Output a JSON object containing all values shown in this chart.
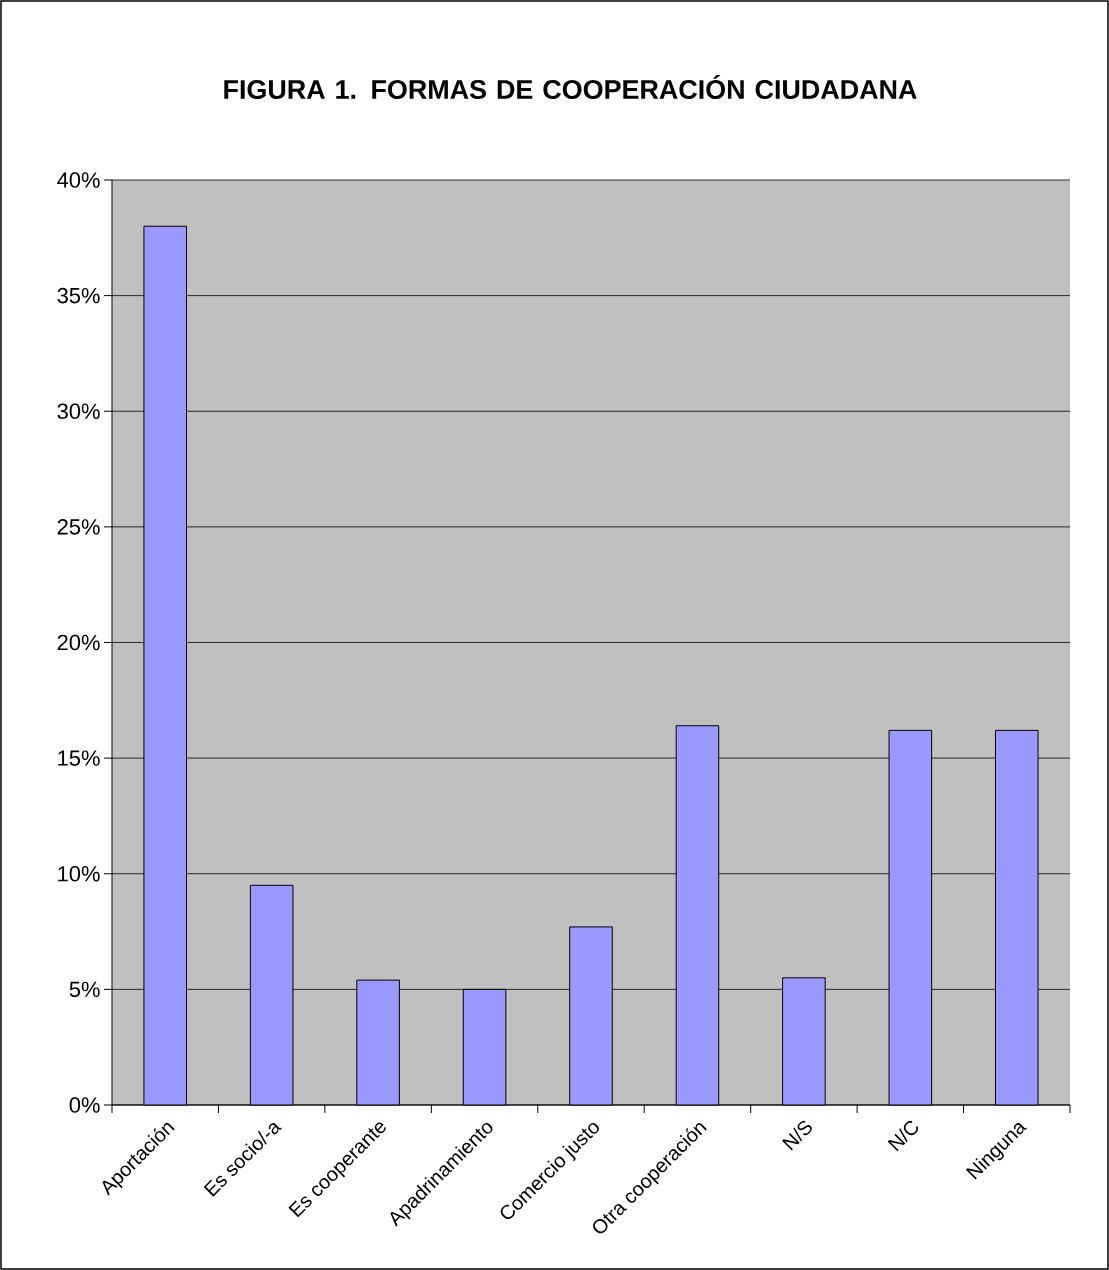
{
  "chart_data": {
    "type": "bar",
    "title": "FIGURA 1. FORMAS DE COOPERACIÓN CIUDADANA",
    "categories": [
      "Aportación",
      "Es socio/-a",
      "Es cooperante",
      "Apadrinamiento",
      "Comercio justo",
      "Otra cooperación",
      "N/S",
      "N/C",
      "Ninguna"
    ],
    "values": [
      38,
      9.5,
      5.4,
      5.0,
      7.7,
      16.4,
      5.5,
      16.2,
      16.2
    ],
    "color": "#9999ff",
    "ylim": [
      0,
      40
    ],
    "yticks": [
      {
        "value": 0,
        "label": "0%"
      },
      {
        "value": 5,
        "label": "5%"
      },
      {
        "value": 10,
        "label": "10%"
      },
      {
        "value": 15,
        "label": "15%"
      },
      {
        "value": 20,
        "label": "20%"
      },
      {
        "value": 25,
        "label": "25%"
      },
      {
        "value": 30,
        "label": "30%"
      },
      {
        "value": 35,
        "label": "35%"
      },
      {
        "value": 40,
        "label": "40%"
      }
    ],
    "grid": "y"
  }
}
